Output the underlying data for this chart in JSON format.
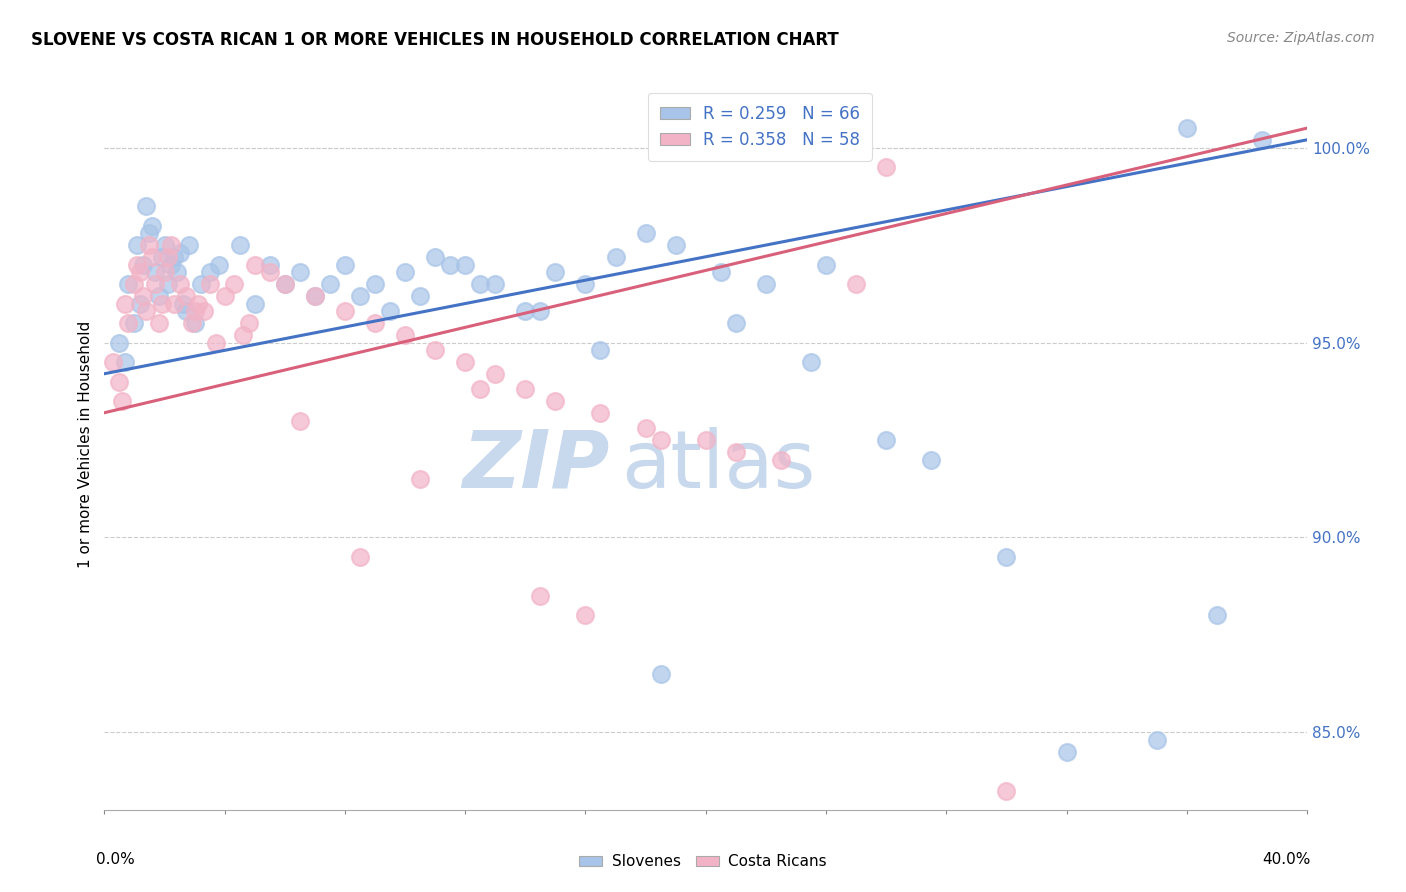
{
  "title": "SLOVENE VS COSTA RICAN 1 OR MORE VEHICLES IN HOUSEHOLD CORRELATION CHART",
  "source": "Source: ZipAtlas.com",
  "ylabel": "1 or more Vehicles in Household",
  "xmin": 0.0,
  "xmax": 40.0,
  "ymin": 83.0,
  "ymax": 101.8,
  "legend_blue_text": "R = 0.259   N = 66",
  "legend_pink_text": "R = 0.358   N = 58",
  "blue_color": "#a8c4e8",
  "pink_color": "#f2b3c6",
  "blue_line_color": "#4472c4",
  "pink_line_color": "#d9607a",
  "legend_text_color": "#4472c4",
  "watermark_zip": "ZIP",
  "watermark_atlas": "atlas",
  "watermark_color_zip": "#c8d8ed",
  "watermark_color_atlas": "#c8d8ed",
  "yticks": [
    85.0,
    90.0,
    95.0,
    100.0
  ],
  "ytick_labels": [
    "85.0%",
    "90.0%",
    "95.0%",
    "100.0%"
  ],
  "slovenes_x": [
    0.5,
    0.7,
    0.8,
    1.0,
    1.1,
    1.2,
    1.3,
    1.4,
    1.5,
    1.6,
    1.7,
    1.8,
    1.9,
    2.0,
    2.1,
    2.2,
    2.3,
    2.4,
    2.5,
    2.6,
    2.7,
    2.8,
    3.0,
    3.2,
    3.5,
    3.8,
    4.5,
    5.0,
    6.0,
    7.0,
    8.0,
    9.0,
    10.0,
    11.0,
    12.0,
    13.0,
    14.0,
    15.0,
    16.0,
    17.0,
    18.0,
    19.0,
    20.5,
    22.0,
    24.0,
    26.0,
    27.5,
    30.0,
    32.0,
    35.0,
    37.0,
    38.5,
    5.5,
    6.5,
    7.5,
    8.5,
    9.5,
    10.5,
    11.5,
    12.5,
    14.5,
    16.5,
    18.5,
    21.0,
    23.5,
    36.0
  ],
  "slovenes_y": [
    95.0,
    94.5,
    96.5,
    95.5,
    97.5,
    96.0,
    97.0,
    98.5,
    97.8,
    98.0,
    96.8,
    96.2,
    97.2,
    97.5,
    96.5,
    97.0,
    97.2,
    96.8,
    97.3,
    96.0,
    95.8,
    97.5,
    95.5,
    96.5,
    96.8,
    97.0,
    97.5,
    96.0,
    96.5,
    96.2,
    97.0,
    96.5,
    96.8,
    97.2,
    97.0,
    96.5,
    95.8,
    96.8,
    96.5,
    97.2,
    97.8,
    97.5,
    96.8,
    96.5,
    97.0,
    92.5,
    92.0,
    89.5,
    84.5,
    84.8,
    88.0,
    100.2,
    97.0,
    96.8,
    96.5,
    96.2,
    95.8,
    96.2,
    97.0,
    96.5,
    95.8,
    94.8,
    86.5,
    95.5,
    94.5,
    100.5
  ],
  "costa_ricans_x": [
    0.3,
    0.5,
    0.6,
    0.7,
    0.8,
    1.0,
    1.1,
    1.2,
    1.3,
    1.4,
    1.5,
    1.6,
    1.7,
    1.8,
    1.9,
    2.0,
    2.1,
    2.2,
    2.3,
    2.5,
    2.7,
    2.9,
    3.1,
    3.3,
    3.5,
    3.7,
    4.0,
    4.3,
    4.6,
    5.0,
    5.5,
    6.0,
    7.0,
    8.0,
    9.0,
    10.0,
    11.0,
    12.0,
    13.0,
    14.0,
    15.0,
    16.5,
    18.0,
    20.0,
    22.5,
    25.0,
    3.0,
    4.8,
    6.5,
    8.5,
    10.5,
    12.5,
    14.5,
    16.0,
    18.5,
    21.0,
    26.0,
    30.0
  ],
  "costa_ricans_y": [
    94.5,
    94.0,
    93.5,
    96.0,
    95.5,
    96.5,
    97.0,
    96.8,
    96.2,
    95.8,
    97.5,
    97.2,
    96.5,
    95.5,
    96.0,
    96.8,
    97.2,
    97.5,
    96.0,
    96.5,
    96.2,
    95.5,
    96.0,
    95.8,
    96.5,
    95.0,
    96.2,
    96.5,
    95.2,
    97.0,
    96.8,
    96.5,
    96.2,
    95.8,
    95.5,
    95.2,
    94.8,
    94.5,
    94.2,
    93.8,
    93.5,
    93.2,
    92.8,
    92.5,
    92.0,
    96.5,
    95.8,
    95.5,
    93.0,
    89.5,
    91.5,
    93.8,
    88.5,
    88.0,
    92.5,
    92.2,
    99.5,
    83.5
  ]
}
